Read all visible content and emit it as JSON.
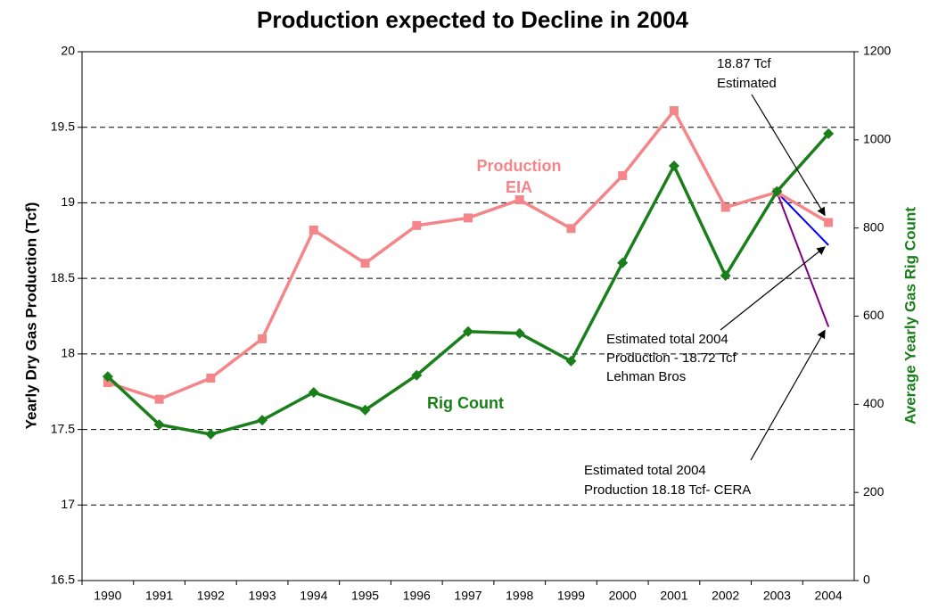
{
  "chart_data": {
    "type": "line",
    "title": "Production expected to Decline in 2004",
    "y_label": "Yearly Dry Gas Production (Tcf)",
    "y2_label": "Average Yearly Gas Rig Count",
    "categories": [
      "1990",
      "1991",
      "1992",
      "1993",
      "1994",
      "1995",
      "1996",
      "1997",
      "1998",
      "1999",
      "2000",
      "2001",
      "2002",
      "2003",
      "2004"
    ],
    "series": [
      {
        "label": [
          "Production",
          "EIA"
        ],
        "color": "#f4868a",
        "marker": "square",
        "values": [
          17.81,
          17.7,
          17.84,
          18.1,
          18.82,
          18.6,
          18.85,
          18.9,
          19.02,
          18.83,
          19.18,
          19.61,
          18.97,
          19.07,
          18.87
        ]
      },
      {
        "label": [
          "Rig Count"
        ],
        "color": "#1a7f1a",
        "marker": "diamond",
        "axis": "y2",
        "values": [
          463,
          354,
          332,
          364,
          427,
          387,
          466,
          565,
          561,
          498,
          721,
          941,
          692,
          883,
          1014
        ]
      },
      {
        "color": "#0000ff",
        "values": [
          null,
          null,
          null,
          null,
          null,
          null,
          null,
          null,
          null,
          null,
          null,
          null,
          null,
          19.07,
          18.72
        ]
      },
      {
        "color": "#800080",
        "values": [
          null,
          null,
          null,
          null,
          null,
          null,
          null,
          null,
          null,
          null,
          null,
          null,
          null,
          19.07,
          18.18
        ]
      }
    ],
    "annotations": [
      [
        "18.87 Tcf",
        "Estimated"
      ],
      [
        "Estimated total 2004",
        "Production - 18.72 Tcf",
        "Lehman Bros"
      ],
      [
        "Estimated total 2004",
        "Production 18.18 Tcf- CERA"
      ]
    ],
    "ylim": [
      16.5,
      20
    ],
    "yticks": [
      16.5,
      17,
      17.5,
      18,
      18.5,
      19,
      19.5,
      20
    ],
    "y2lim": [
      0,
      1200
    ],
    "y2ticks": [
      0,
      200,
      400,
      600,
      800,
      1000,
      1200
    ],
    "grid": true
  }
}
